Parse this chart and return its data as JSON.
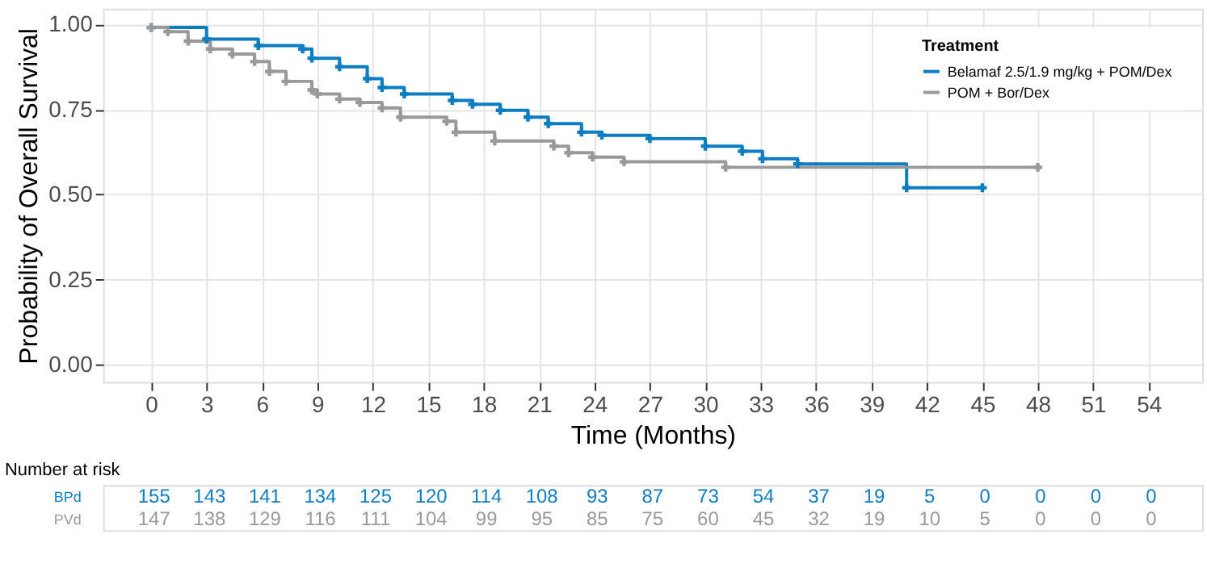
{
  "chart_data": [
    {
      "type": "step",
      "xlabel": "Time (Months)",
      "ylabel": "Probability of Overall Survival",
      "legend_title": "Treatment",
      "legend": "top right",
      "grid": true,
      "marker": "cross",
      "line_style": "solid",
      "xlim": [
        -2.6,
        56.9
      ],
      "xticks": [
        0,
        3,
        6,
        9,
        12,
        15,
        18,
        21,
        24,
        27,
        30,
        33,
        36,
        39,
        42,
        45,
        48,
        51,
        54
      ],
      "ylim": [
        -0.05,
        1.045
      ],
      "yticks": [
        {
          "value": 0,
          "label": "0.00"
        },
        {
          "value": 0.25,
          "label": "0.25"
        },
        {
          "value": 0.5,
          "label": "0.50"
        },
        {
          "value": 0.75,
          "label": "0.75"
        },
        {
          "value": 1,
          "label": "1.00"
        }
      ],
      "series": [
        {
          "name": "Belamaf 2.5/1.9 mg/kg + POM/Dex",
          "color": "#0d7dc1",
          "x": [
            0,
            3.0,
            5.8,
            8.2,
            8.7,
            10.2,
            11.7,
            12.5,
            13.7,
            16.3,
            17.4,
            18.9,
            20.4,
            21.5,
            23.3,
            24.4,
            27.0,
            30.0,
            32.0,
            33.1,
            35.0,
            40.9,
            45.0
          ],
          "values": [
            0.99,
            0.956,
            0.937,
            0.927,
            0.9,
            0.875,
            0.84,
            0.814,
            0.795,
            0.776,
            0.765,
            0.747,
            0.727,
            0.708,
            0.683,
            0.674,
            0.664,
            0.642,
            0.627,
            0.605,
            0.59,
            0.52,
            0.52
          ]
        },
        {
          "name": "POM + Bor/Dex",
          "color": "#999999",
          "x": [
            0,
            0.9,
            2.0,
            3.2,
            4.4,
            5.6,
            6.4,
            7.3,
            8.7,
            9.0,
            10.2,
            11.3,
            12.5,
            13.5,
            16.0,
            16.5,
            18.6,
            21.8,
            22.6,
            23.9,
            25.6,
            31.1,
            48.0
          ],
          "values": [
            0.99,
            0.978,
            0.95,
            0.927,
            0.912,
            0.89,
            0.861,
            0.832,
            0.807,
            0.795,
            0.78,
            0.77,
            0.754,
            0.727,
            0.715,
            0.683,
            0.657,
            0.642,
            0.623,
            0.61,
            0.596,
            0.58,
            0.58
          ]
        }
      ]
    },
    {
      "type": "other",
      "title": "Number at risk",
      "colors": [
        "#0d7dc1",
        "#999999"
      ],
      "annotations": [
        "BPd",
        "155",
        "143",
        "141",
        "134",
        "125",
        "120",
        "114",
        "108",
        "93",
        "87",
        "73",
        "54",
        "37",
        "19",
        "5",
        "0",
        "0",
        "0",
        "0",
        "PVd",
        "147",
        "138",
        "129",
        "116",
        "111",
        "104",
        "99",
        "95",
        "85",
        "75",
        "60",
        "45",
        "32",
        "19",
        "10",
        "5",
        "0",
        "0",
        "0"
      ]
    }
  ]
}
